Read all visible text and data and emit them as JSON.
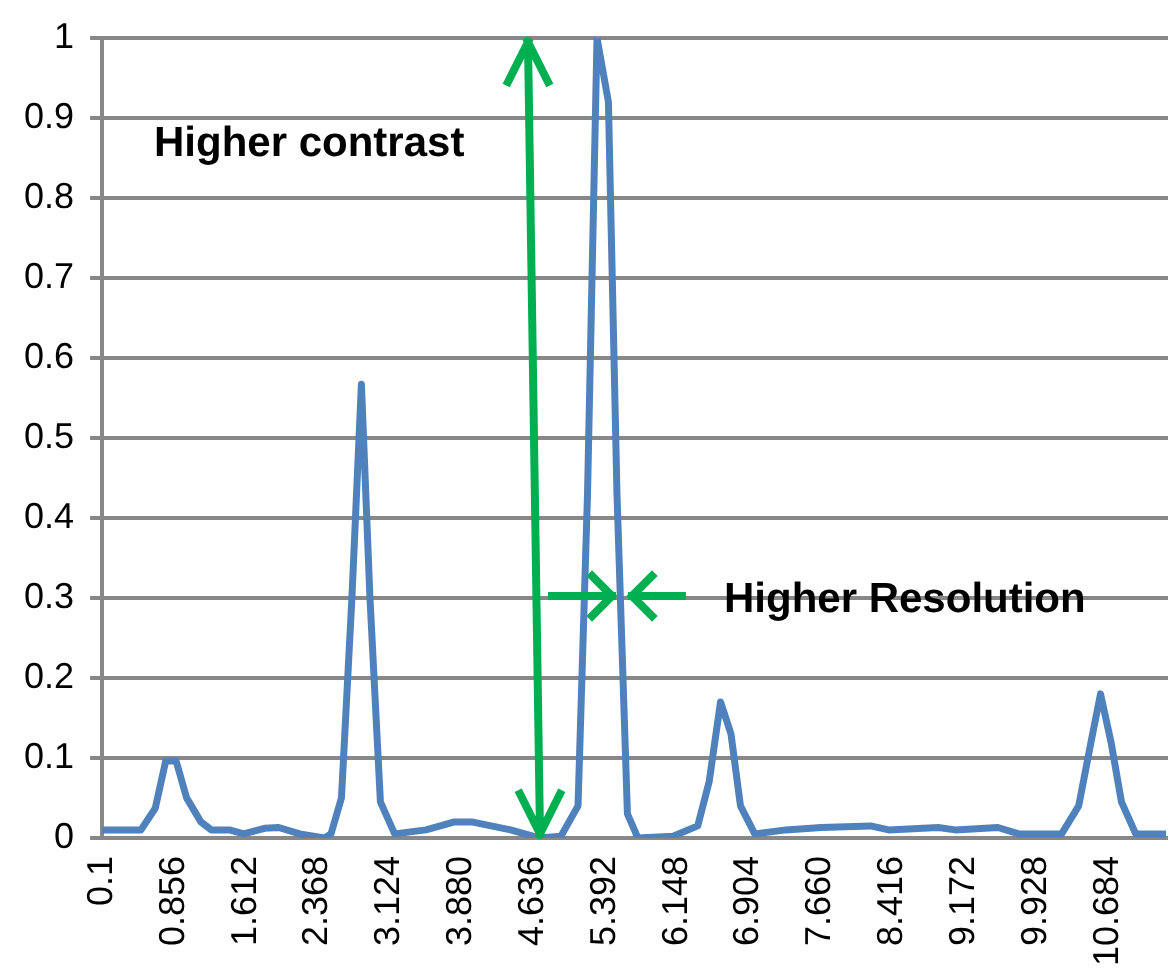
{
  "chart_data": {
    "type": "line",
    "x": [
      0.1,
      0.51,
      0.66,
      0.77,
      0.88,
      0.99,
      1.14,
      1.25,
      1.44,
      1.59,
      1.81,
      1.96,
      2.18,
      2.44,
      2.51,
      2.62,
      2.73,
      2.83,
      2.92,
      3.03,
      3.18,
      3.51,
      3.81,
      3.99,
      4.4,
      4.7,
      4.93,
      5.11,
      5.21,
      5.31,
      5.43,
      5.52,
      5.63,
      5.74,
      6.11,
      6.37,
      6.49,
      6.61,
      6.72,
      6.82,
      6.97,
      7.3,
      7.67,
      8.19,
      8.38,
      8.9,
      9.08,
      9.53,
      9.75,
      10.2,
      10.38,
      10.51,
      10.61,
      10.72,
      10.83,
      10.98,
      11.3
    ],
    "series": [
      {
        "color": "#4f81bd",
        "values": [
          0.01,
          0.01,
          0.037,
          0.096,
          0.096,
          0.05,
          0.02,
          0.01,
          0.01,
          0.005,
          0.012,
          0.013,
          0.005,
          0,
          0.005,
          0.05,
          0.3,
          0.567,
          0.3,
          0.045,
          0.005,
          0.01,
          0.02,
          0.02,
          0.01,
          0,
          0.002,
          0.04,
          0.43,
          1,
          0.92,
          0.43,
          0.03,
          0,
          0.002,
          0.015,
          0.07,
          0.17,
          0.13,
          0.04,
          0.005,
          0.01,
          0.013,
          0.015,
          0.01,
          0.013,
          0.01,
          0.013,
          0.005,
          0.005,
          0.04,
          0.12,
          0.18,
          0.12,
          0.045,
          0.005,
          0.005
        ]
      }
    ],
    "xlim": [
      0.1,
      11.32
    ],
    "xticks": [
      0.1,
      0.856,
      1.612,
      2.368,
      3.124,
      {
        "value": 3.88,
        "label": "3.880"
      },
      4.636,
      5.392,
      6.148,
      6.904,
      {
        "value": 7.66,
        "label": "7.660"
      },
      8.416,
      9.172,
      9.928,
      10.684
    ],
    "ylim": [
      0,
      1
    ],
    "yticks": [
      0,
      0.1,
      0.2,
      0.3,
      0.4,
      0.5,
      0.6,
      0.7,
      0.8,
      0.9,
      1
    ],
    "grid": "y",
    "legend": false,
    "marker": "none",
    "line_style": "solid",
    "annotations": [
      "Higher contrast",
      "Higher Resolution"
    ]
  }
}
